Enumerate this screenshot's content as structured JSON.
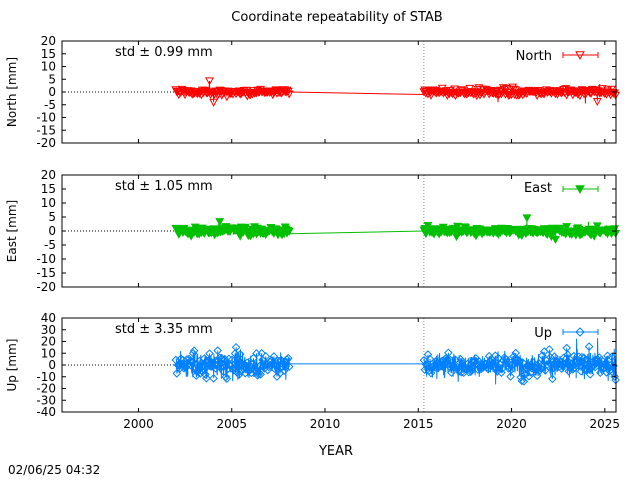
{
  "title": "Coordinate repeatability of STAB",
  "xlabel": "YEAR",
  "timestamp": "02/06/25 04:32",
  "x_ticks": [
    "2000",
    "2005",
    "2010",
    "2015",
    "2020",
    "2025"
  ],
  "x_range": [
    1995.9,
    2025.6
  ],
  "colors": {
    "north": "#ff0000",
    "east": "#00c000",
    "up": "#0080ff"
  },
  "chart_data": [
    {
      "type": "scatter",
      "ylabel": "North [mm]",
      "ylim": [
        -20,
        20
      ],
      "yticks": [
        "20",
        "15",
        "10",
        "5",
        "0",
        "-5",
        "-10",
        "-15",
        "-20"
      ],
      "std_label": "std ± 0.99 mm",
      "legend": "North",
      "legend_placement": "top-right",
      "marker": "triangle-down-open",
      "std": 0.99,
      "segments": [
        {
          "start": 2002.0,
          "end": 2008.1
        },
        {
          "start": 2015.3,
          "end": 2025.6
        }
      ],
      "interpolation": {
        "from": [
          2008.1,
          0
        ],
        "to": [
          2015.3,
          -1
        ]
      },
      "vertical_marker": 2015.3
    },
    {
      "type": "scatter",
      "ylabel": "East [mm]",
      "ylim": [
        -20,
        20
      ],
      "yticks": [
        "20",
        "15",
        "10",
        "5",
        "0",
        "-5",
        "-10",
        "-15",
        "-20"
      ],
      "std_label": "std ± 1.05 mm",
      "legend": "East",
      "legend_placement": "top-right",
      "marker": "triangle-down-filled",
      "std": 1.05,
      "segments": [
        {
          "start": 2002.0,
          "end": 2008.1
        },
        {
          "start": 2015.3,
          "end": 2025.6
        }
      ],
      "interpolation": {
        "from": [
          2008.1,
          -1
        ],
        "to": [
          2015.3,
          0
        ]
      },
      "vertical_marker": 2015.3
    },
    {
      "type": "scatter",
      "ylabel": "Up [mm]",
      "ylim": [
        -40,
        40
      ],
      "yticks": [
        "40",
        "30",
        "20",
        "10",
        "0",
        "-10",
        "-20",
        "-30",
        "-40"
      ],
      "std_label": "std ± 3.35 mm",
      "legend": "Up",
      "legend_placement": "top-right",
      "marker": "diamond-open",
      "std": 3.35,
      "segments": [
        {
          "start": 2002.0,
          "end": 2008.1
        },
        {
          "start": 2015.3,
          "end": 2025.6
        }
      ],
      "interpolation": {
        "from": [
          2008.1,
          1
        ],
        "to": [
          2015.3,
          1
        ]
      },
      "vertical_marker": 2015.3
    }
  ]
}
